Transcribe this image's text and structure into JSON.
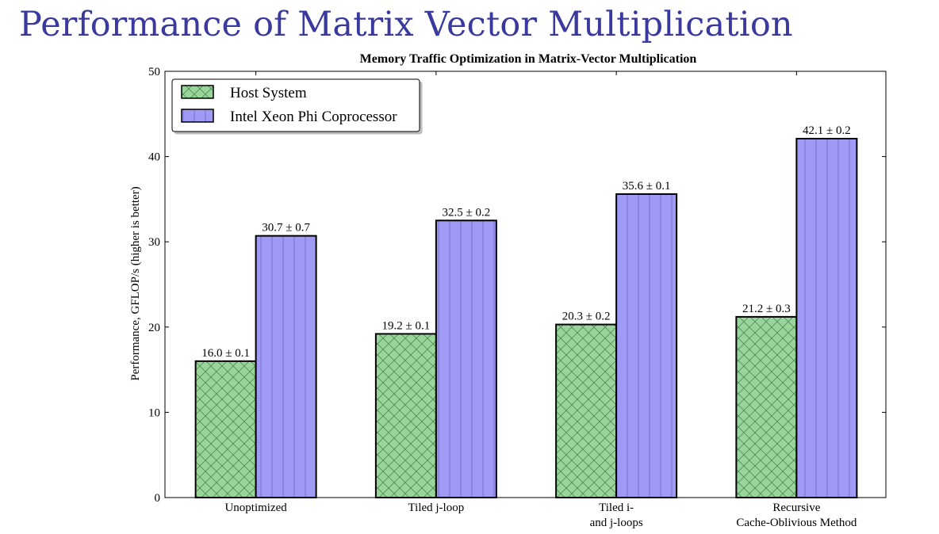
{
  "slide": {
    "title": "Performance of Matrix Vector Multiplication"
  },
  "colors": {
    "title": "#3a3a9e",
    "host": "#99d49b",
    "phi": "#9f9af4",
    "edge": "#000000"
  },
  "chart_data": {
    "type": "bar",
    "title": "Memory Traffic Optimization in Matrix-Vector Multiplication",
    "xlabel": "",
    "ylabel": "Performance, GFLOP/s (higher is better)",
    "ylim": [
      0,
      50
    ],
    "yticks": [
      0,
      10,
      20,
      30,
      40,
      50
    ],
    "grid": false,
    "legend_position": "top-left",
    "categories": [
      [
        "Unoptimized"
      ],
      [
        "Tiled j-loop"
      ],
      [
        "Tiled i-",
        "and j-loops"
      ],
      [
        "Recursive",
        "Cache-Oblivious Method"
      ]
    ],
    "series": [
      {
        "name": "Host System",
        "pattern": "crosshatch",
        "values": [
          16.0,
          19.2,
          20.3,
          21.2
        ],
        "labels": [
          "16.0 ± 0.1",
          "19.2 ± 0.1",
          "20.3 ± 0.2",
          "21.2 ± 0.3"
        ]
      },
      {
        "name": "Intel Xeon Phi Coprocessor",
        "pattern": "vertical-lines",
        "values": [
          30.7,
          32.5,
          35.6,
          42.1
        ],
        "labels": [
          "30.7 ± 0.7",
          "32.5 ± 0.2",
          "35.6 ± 0.1",
          "42.1 ± 0.2"
        ]
      }
    ]
  }
}
